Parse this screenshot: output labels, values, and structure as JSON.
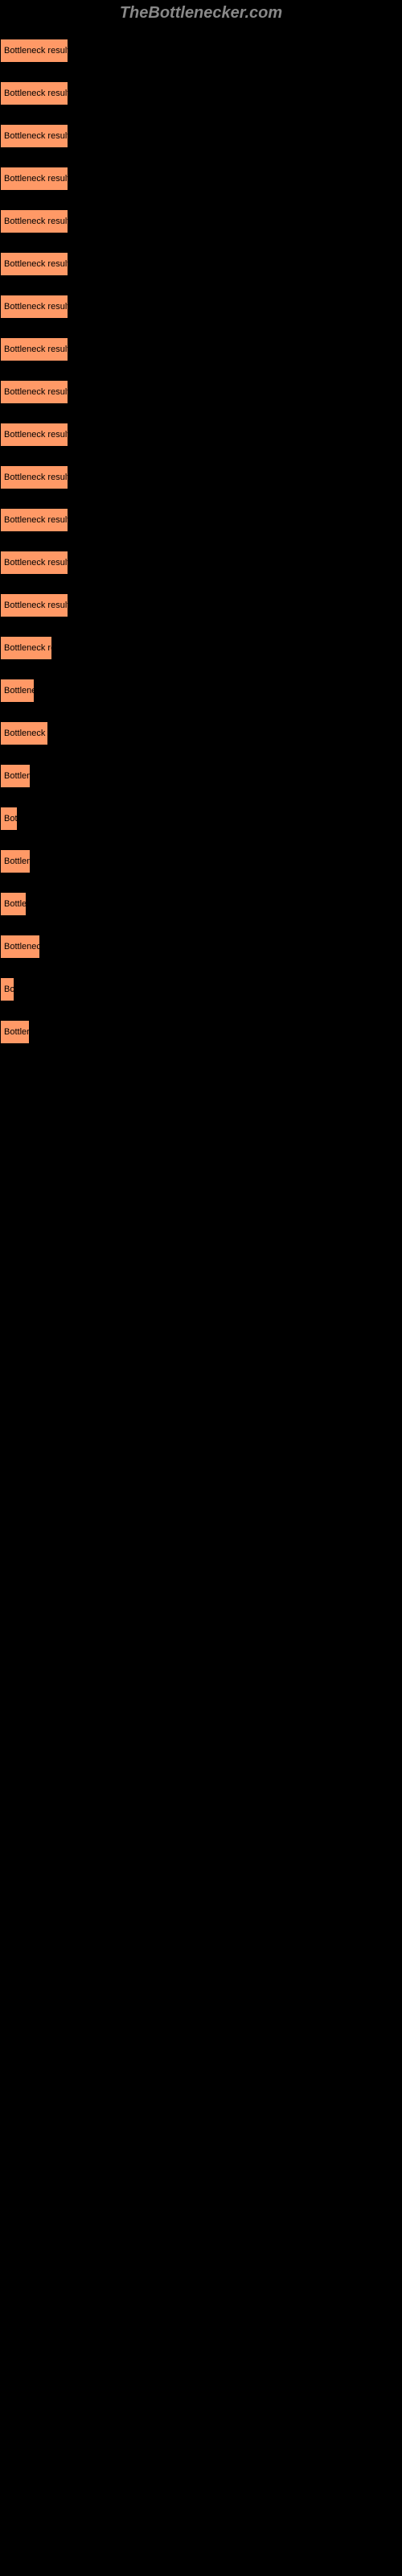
{
  "header": "TheBottlenecker.com",
  "buttons": [
    {
      "label": "Bottleneck result",
      "width": 85
    },
    {
      "label": "Bottleneck result",
      "width": 85
    },
    {
      "label": "Bottleneck result",
      "width": 85
    },
    {
      "label": "Bottleneck result",
      "width": 85
    },
    {
      "label": "Bottleneck result",
      "width": 85
    },
    {
      "label": "Bottleneck result",
      "width": 85
    },
    {
      "label": "Bottleneck result",
      "width": 85
    },
    {
      "label": "Bottleneck result",
      "width": 85
    },
    {
      "label": "Bottleneck result",
      "width": 85
    },
    {
      "label": "Bottleneck result",
      "width": 85
    },
    {
      "label": "Bottleneck result",
      "width": 85
    },
    {
      "label": "Bottleneck result",
      "width": 85
    },
    {
      "label": "Bottleneck result",
      "width": 85
    },
    {
      "label": "Bottleneck result",
      "width": 85
    },
    {
      "label": "Bottleneck re",
      "width": 65
    },
    {
      "label": "Bottlene",
      "width": 43
    },
    {
      "label": "Bottleneck r",
      "width": 60
    },
    {
      "label": "Bottlen",
      "width": 38
    },
    {
      "label": "Bot",
      "width": 22
    },
    {
      "label": "Bottlen",
      "width": 38
    },
    {
      "label": "Bottle",
      "width": 33
    },
    {
      "label": "Bottlenec",
      "width": 50
    },
    {
      "label": "Bo",
      "width": 18
    },
    {
      "label": "Bottler",
      "width": 37
    }
  ],
  "colors": {
    "background": "#000000",
    "button_bg": "#ff9966",
    "button_text": "#000000",
    "header_text": "#888888"
  }
}
